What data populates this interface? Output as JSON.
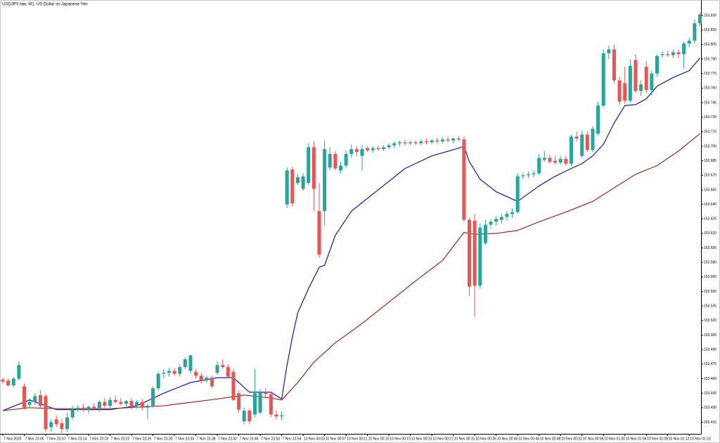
{
  "chart_data": {
    "type": "candlestick",
    "title": "USDJPY.raw, M1: US Dollar vs Japanese Yen",
    "up_color": "#26a69a",
    "down_color": "#ef5350",
    "xlim": [
      -0.525,
      130.2
    ],
    "ylim": [
      153.403,
      153.851
    ],
    "yticks": [
      153.415,
      {
        "value": 153.43,
        "label": "153.430"
      },
      153.445,
      {
        "value": 153.46,
        "label": "153.460"
      },
      153.475,
      {
        "value": 153.49,
        "label": "153.490"
      },
      153.505,
      {
        "value": 153.52,
        "label": "153.520"
      },
      153.535,
      {
        "value": 153.55,
        "label": "153.550"
      },
      153.565,
      {
        "value": 153.58,
        "label": "153.580"
      },
      153.595,
      {
        "value": 153.61,
        "label": "153.610"
      },
      153.625,
      {
        "value": 153.64,
        "label": "153.640"
      },
      153.655,
      {
        "value": 153.67,
        "label": "153.670"
      },
      153.685,
      {
        "value": 153.7,
        "label": "153.700"
      },
      153.715,
      {
        "value": 153.73,
        "label": "153.730"
      },
      153.745,
      {
        "value": 153.76,
        "label": "153.760"
      },
      153.775,
      {
        "value": 153.79,
        "label": "153.790"
      },
      153.805,
      {
        "value": 153.82,
        "label": "153.820"
      },
      153.835
    ],
    "xticks": [
      {
        "value": 0,
        "label": "7 Nov 2025"
      },
      {
        "value": 4,
        "label": "7 Nov 23:06"
      },
      {
        "value": 8,
        "label": "7 Nov 23:10"
      },
      {
        "value": 12,
        "label": "7 Nov 23:14"
      },
      {
        "value": 16,
        "label": "7 Nov 23:18"
      },
      {
        "value": 20,
        "label": "7 Nov 23:22"
      },
      {
        "value": 24,
        "label": "7 Nov 23:26"
      },
      {
        "value": 28,
        "label": "7 Nov 23:30"
      },
      {
        "value": 32,
        "label": "7 Nov 23:34"
      },
      {
        "value": 36,
        "label": "7 Nov 23:38"
      },
      {
        "value": 40,
        "label": "7 Nov 23:42"
      },
      {
        "value": 44,
        "label": "7 Nov 23:46"
      },
      {
        "value": 48,
        "label": "7 Nov 23:50"
      },
      {
        "value": 52,
        "label": "7 Nov 23:54"
      },
      {
        "value": 56,
        "label": "10 Nov 00:03"
      },
      {
        "value": 60,
        "label": "10 Nov 00:07"
      },
      {
        "value": 64,
        "label": "10 Nov 00:11"
      },
      {
        "value": 68,
        "label": "10 Nov 00:15"
      },
      {
        "value": 72,
        "label": "10 Nov 00:19"
      },
      {
        "value": 76,
        "label": "10 Nov 00:23"
      },
      {
        "value": 80,
        "label": "10 Nov 00:27"
      },
      {
        "value": 84,
        "label": "10 Nov 00:31"
      },
      {
        "value": 88,
        "label": "10 Nov 00:36"
      },
      {
        "value": 92,
        "label": "10 Nov 00:40"
      },
      {
        "value": 96,
        "label": "10 Nov 00:44"
      },
      {
        "value": 100,
        "label": "10 Nov 00:48"
      },
      {
        "value": 104,
        "label": "10 Nov 00:52"
      },
      {
        "value": 108,
        "label": "10 Nov 00:56"
      },
      {
        "value": 112,
        "label": "10 Nov 01:00"
      },
      {
        "value": 116,
        "label": "10 Nov 01:04"
      },
      {
        "value": 120,
        "label": "10 Nov 01:08"
      },
      {
        "value": 124,
        "label": "10 Nov 01:12"
      },
      {
        "value": 128,
        "label": "10 Nov 01:16"
      }
    ],
    "open": [
      153.459,
      153.458,
      153.453,
      153.46,
      153.452,
      153.433,
      153.436,
      153.443,
      153.442,
      153.41,
      153.418,
      153.414,
      153.408,
      153.42,
      153.428,
      153.43,
      153.428,
      153.431,
      153.429,
      153.436,
      153.432,
      153.438,
      153.436,
      153.434,
      153.437,
      153.432,
      153.436,
      153.43,
      153.432,
      153.45,
      153.465,
      153.466,
      153.468,
      153.465,
      153.472,
      153.468,
      153.467,
      153.463,
      153.458,
      153.461,
      153.466,
      153.474,
      153.472,
      153.467,
      153.445,
      153.416,
      153.427,
      153.423,
      153.425,
      153.446,
      153.444,
      153.423,
      153.421,
      153.64,
      153.676,
      153.662,
      153.656,
      153.662,
      153.699,
      153.633,
      153.633,
      153.678,
      153.692,
      153.675,
      153.68,
      153.692,
      153.697,
      153.69,
      153.698,
      153.696,
      153.698,
      153.697,
      153.699,
      153.701,
      153.703,
      153.704,
      153.703,
      153.704,
      153.703,
      153.705,
      153.704,
      153.706,
      153.705,
      153.707,
      153.706,
      153.708,
      153.707,
      153.624,
      153.623,
      153.556,
      153.6,
      153.619,
      153.622,
      153.624,
      153.627,
      153.63,
      153.632,
      153.669,
      153.67,
      153.671,
      153.672,
      153.686,
      153.688,
      153.685,
      153.683,
      153.687,
      153.682,
      153.71,
      153.69,
      153.712,
      153.696,
      153.713,
      153.742,
      153.796,
      153.8,
      153.768,
      153.765,
      153.747,
      153.789,
      153.757,
      153.782,
      153.758,
      153.775,
      153.794,
      153.795,
      153.794,
      153.797,
      153.795,
      153.806,
      153.809,
      153.827
    ],
    "high": [
      153.461,
      153.46,
      153.462,
      153.478,
      153.455,
      153.44,
      153.445,
      153.448,
      153.444,
      153.418,
      153.422,
      153.418,
      153.425,
      153.432,
      153.433,
      153.434,
      153.432,
      153.435,
      153.438,
      153.44,
      153.441,
      153.442,
      153.44,
      153.438,
      153.44,
      153.438,
      153.439,
      153.434,
      153.452,
      153.467,
      153.47,
      153.471,
      153.471,
      153.475,
      153.482,
      153.485,
      153.47,
      153.466,
      153.463,
      153.463,
      153.478,
      153.48,
      153.475,
      153.47,
      153.448,
      153.43,
      153.429,
      153.47,
      153.449,
      153.45,
      153.446,
      153.427,
      153.426,
      153.678,
      153.679,
      153.671,
      153.672,
      153.703,
      153.705,
      153.662,
      153.706,
      153.699,
      153.695,
      153.684,
      153.696,
      153.702,
      153.7,
      153.701,
      153.7,
      153.7,
      153.701,
      153.701,
      153.703,
      153.705,
      153.706,
      153.707,
      153.706,
      153.706,
      153.707,
      153.708,
      153.707,
      153.709,
      153.709,
      153.71,
      153.709,
      153.71,
      153.71,
      153.626,
      153.63,
      153.62,
      153.624,
      153.625,
      153.628,
      153.63,
      153.633,
      153.636,
      153.672,
      153.673,
      153.674,
      153.675,
      153.692,
      153.695,
      153.691,
      153.69,
      153.69,
      153.69,
      153.712,
      153.715,
      153.716,
      153.716,
      153.721,
      153.746,
      153.8,
      153.804,
      153.805,
      153.772,
      153.782,
      153.79,
      153.795,
      153.768,
      153.788,
      153.778,
      153.795,
      153.798,
      153.799,
      153.8,
      153.8,
      153.808,
      153.812,
      153.831,
      153.838
    ],
    "low": [
      153.455,
      153.452,
      153.451,
      153.458,
      153.428,
      153.43,
      153.433,
      153.43,
      153.405,
      153.405,
      153.41,
      153.404,
      153.405,
      153.418,
      153.426,
      153.426,
      153.424,
      153.427,
      153.426,
      153.43,
      153.43,
      153.434,
      153.432,
      153.43,
      153.428,
      153.429,
      153.427,
      153.418,
      153.43,
      153.448,
      153.46,
      153.462,
      153.463,
      153.462,
      153.47,
      153.465,
      153.46,
      153.455,
      153.456,
      153.45,
      153.464,
      153.47,
      153.46,
      153.437,
      153.425,
      153.413,
      153.413,
      153.42,
      153.423,
      153.44,
      153.42,
      153.418,
      153.417,
      153.636,
      153.638,
      153.66,
      153.654,
      153.66,
      153.633,
      153.585,
      153.618,
      153.675,
      153.675,
      153.672,
      153.678,
      153.688,
      153.69,
      153.675,
      153.694,
      153.693,
      153.695,
      153.695,
      153.697,
      153.698,
      153.7,
      153.701,
      153.701,
      153.701,
      153.701,
      153.702,
      153.702,
      153.703,
      153.703,
      153.704,
      153.703,
      153.705,
      153.622,
      153.545,
      153.524,
      153.553,
      153.598,
      153.615,
      153.618,
      153.62,
      153.623,
      153.626,
      153.63,
      153.666,
      153.667,
      153.668,
      153.67,
      153.684,
      153.682,
      153.681,
      153.681,
      153.68,
      153.68,
      153.705,
      153.688,
      153.694,
      153.694,
      153.711,
      153.74,
      153.79,
      153.765,
      153.743,
      153.744,
      153.745,
      153.755,
      153.752,
      153.755,
      153.752,
      153.772,
      153.791,
      153.792,
      153.791,
      153.791,
      153.78,
      153.802,
      153.806,
      153.824
    ],
    "close": [
      153.457,
      153.453,
      153.46,
      153.474,
      153.43,
      153.436,
      153.442,
      153.432,
      153.408,
      153.415,
      153.413,
      153.408,
      153.42,
      153.428,
      153.43,
      153.428,
      153.431,
      153.429,
      153.436,
      153.432,
      153.438,
      153.436,
      153.434,
      153.437,
      153.432,
      153.436,
      153.43,
      153.432,
      153.45,
      153.465,
      153.466,
      153.468,
      153.465,
      153.472,
      153.48,
      153.484,
      153.463,
      153.458,
      153.461,
      153.452,
      153.474,
      153.472,
      153.462,
      153.438,
      153.428,
      153.427,
      153.416,
      153.445,
      153.446,
      153.444,
      153.423,
      153.421,
      153.422,
      153.675,
      153.641,
      153.668,
      153.669,
      153.699,
      153.656,
      153.588,
      153.697,
      153.692,
      153.677,
      153.68,
      153.692,
      153.697,
      153.694,
      153.697,
      153.696,
      153.698,
      153.697,
      153.699,
      153.701,
      153.703,
      153.704,
      153.703,
      153.704,
      153.703,
      153.705,
      153.704,
      153.706,
      153.705,
      153.707,
      153.706,
      153.708,
      153.707,
      153.624,
      153.555,
      153.556,
      153.616,
      153.619,
      153.622,
      153.625,
      153.627,
      153.63,
      153.632,
      153.669,
      153.67,
      153.671,
      153.672,
      153.688,
      153.688,
      153.684,
      153.683,
      153.687,
      153.682,
      153.71,
      153.708,
      153.712,
      153.696,
      153.718,
      153.742,
      153.796,
      153.8,
      153.768,
      153.746,
      153.747,
      153.783,
      153.757,
      153.764,
      153.758,
      153.775,
      153.793,
      153.795,
      153.794,
      153.797,
      153.795,
      153.806,
      153.809,
      153.827,
      153.836
    ],
    "overlays": [
      {
        "type": "line",
        "color": "#1414cc",
        "x": [
          0,
          5,
          10,
          20,
          25,
          30,
          35,
          40,
          43,
          46,
          50,
          52,
          53,
          54,
          55,
          57,
          59,
          60,
          62,
          65,
          70,
          75,
          80,
          85,
          86,
          87,
          89,
          92,
          96,
          98,
          100,
          103,
          106,
          108,
          110,
          112,
          114,
          116,
          118,
          120,
          122,
          125,
          128,
          130
        ],
        "values": [
          153.427,
          153.438,
          153.428,
          153.428,
          153.432,
          153.445,
          153.456,
          153.461,
          153.461,
          153.446,
          153.446,
          153.439,
          153.474,
          153.503,
          153.528,
          153.553,
          153.575,
          153.577,
          153.608,
          153.633,
          153.655,
          153.677,
          153.69,
          153.698,
          153.7,
          153.684,
          153.666,
          153.653,
          153.643,
          153.651,
          153.659,
          153.669,
          153.677,
          153.682,
          153.69,
          153.702,
          153.724,
          153.742,
          153.743,
          153.749,
          153.762,
          153.771,
          153.778,
          153.791
        ]
      },
      {
        "type": "line",
        "color": "#a0281a",
        "x": [
          0,
          5,
          10,
          20,
          30,
          40,
          45,
          50,
          52,
          55,
          58,
          62,
          67,
          72,
          77,
          82,
          86,
          88,
          92,
          96,
          100,
          105,
          110,
          114,
          118,
          122,
          126,
          130
        ],
        "values": [
          153.427,
          153.43,
          153.429,
          153.429,
          153.432,
          153.439,
          153.443,
          153.44,
          153.438,
          153.456,
          153.477,
          153.497,
          153.517,
          153.539,
          153.561,
          153.582,
          153.611,
          153.609,
          153.61,
          153.613,
          153.622,
          153.632,
          153.643,
          153.657,
          153.671,
          153.68,
          153.695,
          153.713
        ]
      }
    ]
  }
}
